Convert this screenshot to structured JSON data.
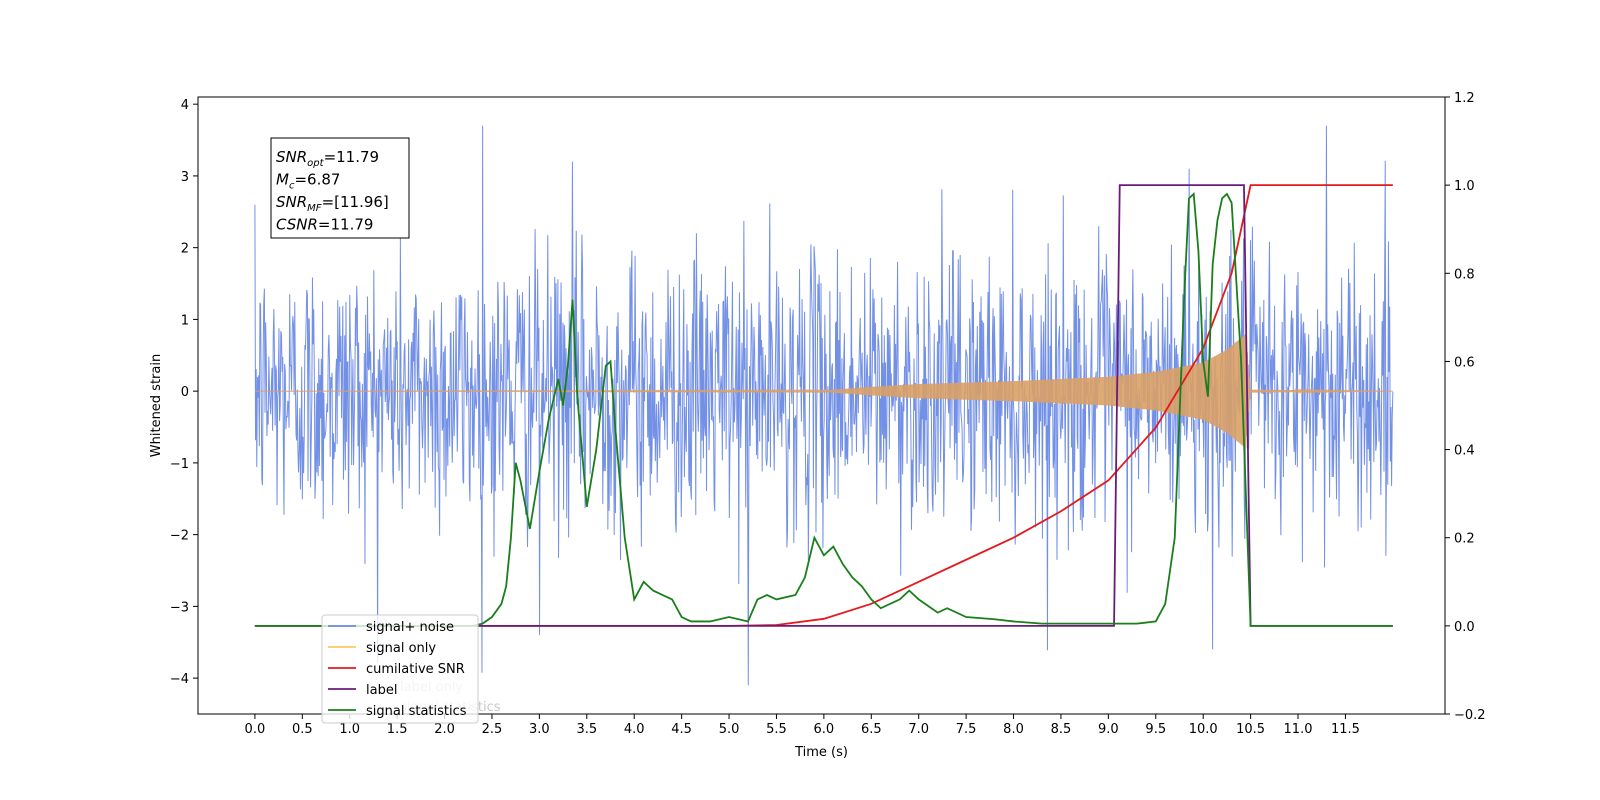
{
  "chart_data": {
    "type": "line",
    "xlabel": "Time (s)",
    "ylabel": "Whitened strain",
    "xlim": [
      -0.6,
      12.55
    ],
    "ylim_left": [
      -4.5,
      4.1
    ],
    "ylim_right": [
      -0.2,
      1.2
    ],
    "x_ticks": [
      0.0,
      0.5,
      1.0,
      1.5,
      2.0,
      2.5,
      3.0,
      3.5,
      4.0,
      4.5,
      5.0,
      5.5,
      6.0,
      6.5,
      7.0,
      7.5,
      8.0,
      8.5,
      9.0,
      9.5,
      10.0,
      10.5,
      11.0,
      11.5
    ],
    "x_tick_labels": [
      "0.0",
      "0.5",
      "1.0",
      "1.5",
      "2.0",
      "2.5",
      "3.0",
      "3.5",
      "4.0",
      "4.5",
      "5.0",
      "5.5",
      "6.0",
      "6.5",
      "7.0",
      "7.5",
      "8.0",
      "8.5",
      "9.0",
      "9.5",
      "10.0",
      "10.5",
      "11.0",
      "11.5"
    ],
    "y_left_ticks": [
      -4,
      -3,
      -2,
      -1,
      0,
      1,
      2,
      3,
      4
    ],
    "y_left_tick_labels": [
      "−4",
      "−3",
      "−2",
      "−1",
      "0",
      "1",
      "2",
      "3",
      "4"
    ],
    "y_right_ticks": [
      -0.2,
      0.0,
      0.2,
      0.4,
      0.6,
      0.8,
      1.0,
      1.2
    ],
    "y_right_tick_labels": [
      "−0.2",
      "0.0",
      "0.2",
      "0.4",
      "0.6",
      "0.8",
      "1.0",
      "1.2"
    ],
    "grid": false,
    "legend_position": "lower-left",
    "series": [
      {
        "name": "signal+ noise",
        "axis": "left",
        "color": "#6b8ae6",
        "kind": "noise",
        "x_range": [
          0.0,
          12.0
        ],
        "typical_amplitude": 1.3,
        "peak_min": -4.1,
        "peak_max": 3.7,
        "highlight_spikes": [
          [
            2.4,
            3.7
          ],
          [
            5.2,
            -4.1
          ],
          [
            3.0,
            -3.4
          ],
          [
            10.1,
            -3.6
          ],
          [
            11.3,
            3.7
          ],
          [
            3.35,
            3.2
          ],
          [
            9.85,
            3.1
          ]
        ]
      },
      {
        "name": "signal only",
        "axis": "left",
        "color": "#d9a066",
        "kind": "chirp",
        "x_range": [
          0.0,
          12.0
        ],
        "envelope": [
          [
            0.0,
            0.0
          ],
          [
            6.0,
            0.01
          ],
          [
            6.5,
            0.06
          ],
          [
            7.0,
            0.1
          ],
          [
            7.5,
            0.12
          ],
          [
            8.0,
            0.14
          ],
          [
            8.5,
            0.17
          ],
          [
            9.0,
            0.2
          ],
          [
            9.5,
            0.27
          ],
          [
            10.0,
            0.4
          ],
          [
            10.25,
            0.58
          ],
          [
            10.45,
            0.8
          ],
          [
            10.5,
            0.02
          ],
          [
            12.0,
            0.0
          ]
        ]
      },
      {
        "name": "cumilative SNR",
        "axis": "right",
        "color": "#e31a1c",
        "x": [
          0.0,
          5.0,
          5.5,
          6.0,
          6.5,
          7.0,
          7.5,
          8.0,
          8.5,
          9.0,
          9.5,
          10.0,
          10.3,
          10.45,
          10.5,
          12.0
        ],
        "y": [
          0.0,
          0.0,
          0.002,
          0.016,
          0.05,
          0.1,
          0.15,
          0.2,
          0.26,
          0.33,
          0.45,
          0.63,
          0.8,
          0.95,
          1.0,
          1.0
        ]
      },
      {
        "name": "label",
        "axis": "right",
        "color": "#6a1b7a",
        "x": [
          0.0,
          9.06,
          9.12,
          10.43,
          10.5,
          12.0
        ],
        "y": [
          0.0,
          0.0,
          1.0,
          1.0,
          0.0,
          0.0
        ]
      },
      {
        "name": "signal statistics",
        "axis": "right",
        "color": "#1a7f1a",
        "x": [
          0.0,
          2.3,
          2.4,
          2.5,
          2.6,
          2.65,
          2.7,
          2.75,
          2.8,
          2.9,
          3.0,
          3.1,
          3.2,
          3.25,
          3.3,
          3.35,
          3.4,
          3.5,
          3.6,
          3.7,
          3.75,
          3.8,
          3.9,
          4.0,
          4.1,
          4.2,
          4.3,
          4.4,
          4.5,
          4.6,
          4.8,
          5.0,
          5.2,
          5.3,
          5.4,
          5.5,
          5.7,
          5.8,
          5.9,
          6.0,
          6.1,
          6.2,
          6.3,
          6.4,
          6.5,
          6.6,
          6.8,
          6.9,
          7.0,
          7.2,
          7.3,
          7.5,
          7.8,
          8.0,
          8.3,
          8.5,
          9.0,
          9.3,
          9.5,
          9.6,
          9.7,
          9.8,
          9.85,
          9.9,
          9.95,
          10.0,
          10.05,
          10.1,
          10.15,
          10.2,
          10.25,
          10.3,
          10.4,
          10.5,
          12.0
        ],
        "y": [
          0.0,
          0.0,
          0.005,
          0.02,
          0.05,
          0.09,
          0.2,
          0.37,
          0.33,
          0.22,
          0.35,
          0.47,
          0.56,
          0.5,
          0.59,
          0.74,
          0.52,
          0.27,
          0.4,
          0.59,
          0.6,
          0.45,
          0.2,
          0.06,
          0.1,
          0.08,
          0.07,
          0.06,
          0.02,
          0.01,
          0.01,
          0.02,
          0.01,
          0.06,
          0.07,
          0.06,
          0.07,
          0.11,
          0.2,
          0.16,
          0.18,
          0.14,
          0.11,
          0.09,
          0.06,
          0.04,
          0.06,
          0.08,
          0.06,
          0.03,
          0.04,
          0.02,
          0.015,
          0.01,
          0.005,
          0.005,
          0.005,
          0.005,
          0.01,
          0.05,
          0.2,
          0.75,
          0.97,
          0.98,
          0.85,
          0.6,
          0.52,
          0.82,
          0.92,
          0.97,
          0.98,
          0.96,
          0.6,
          0.0,
          0.0
        ]
      }
    ],
    "info_box": [
      {
        "label": "SNR",
        "sub": "opt",
        "value": "=11.79"
      },
      {
        "label": "M",
        "sub": "c",
        "value": "=6.87"
      },
      {
        "label": "SNR",
        "sub": "MF",
        "value": "=[11.96]"
      },
      {
        "label": "CSNR",
        "sub": "",
        "value": "=11.79"
      }
    ],
    "legend": [
      {
        "label": "signal+ noise",
        "color": "#6b8ae6"
      },
      {
        "label": "signal only",
        "color": "#ffc862"
      },
      {
        "label": "cumilative SNR",
        "color": "#e31a1c"
      },
      {
        "label": "label",
        "color": "#6a1b7a"
      },
      {
        "label": "signal statistics",
        "color": "#1a7f1a"
      }
    ],
    "legend_ghost_text": [
      "label only",
      "signal statistics"
    ]
  }
}
